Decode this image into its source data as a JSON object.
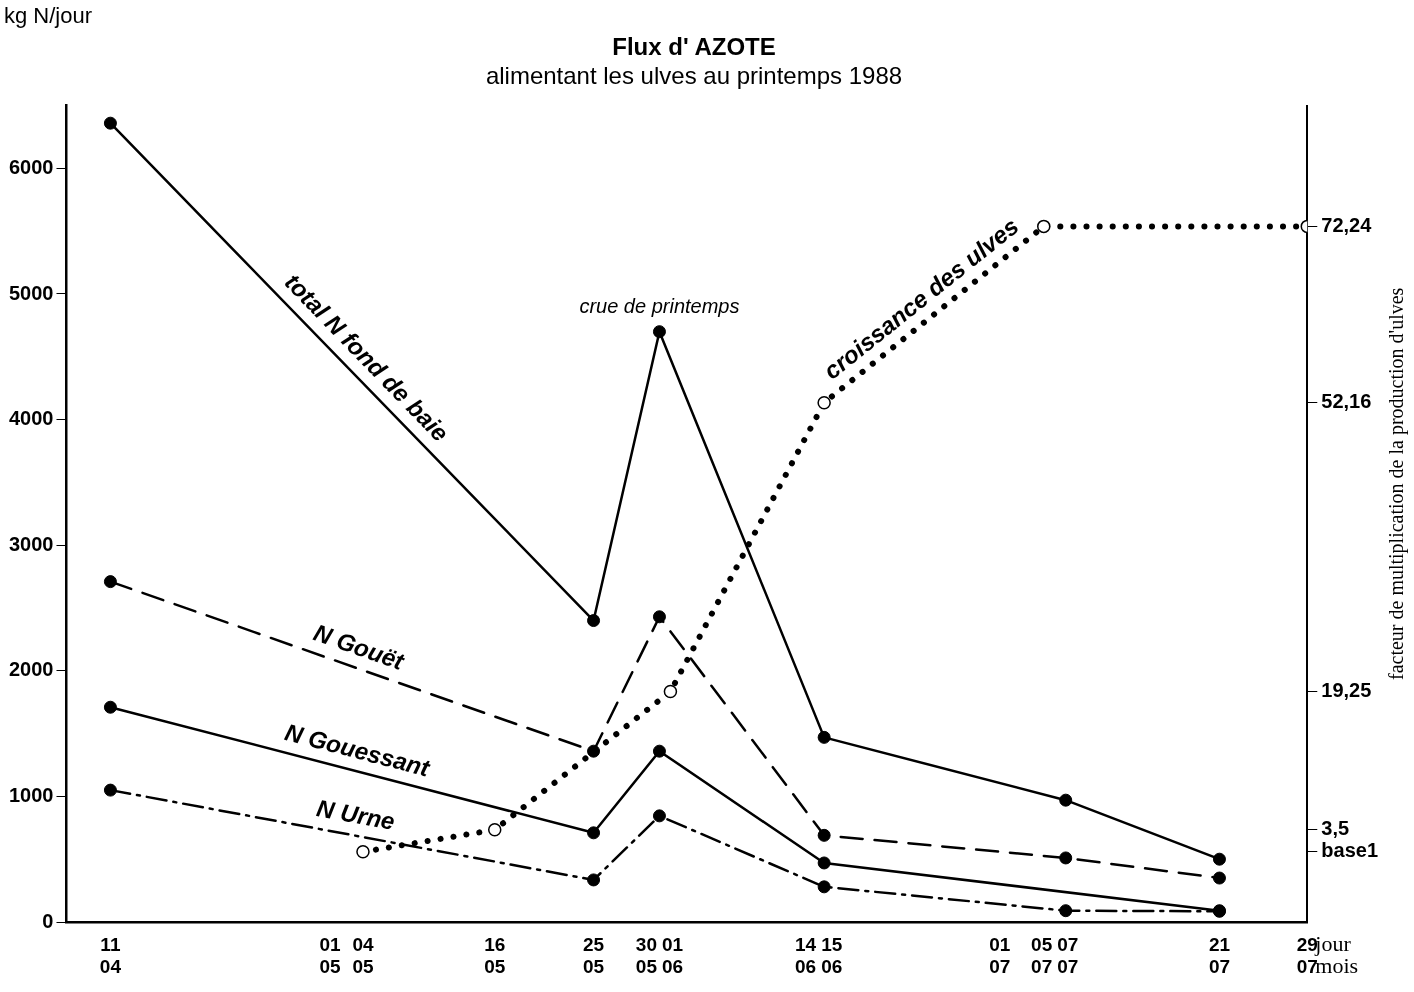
{
  "chart_data": {
    "type": "line",
    "title": "Flux d' AZOTE",
    "subtitle": "alimentant les ulves au printemps 1988",
    "xlabel": "jour mois",
    "ylabel": "kg N/jour",
    "y2label": "facteur de multiplication de la production d'ulves",
    "xlim": [
      "--04-07",
      "--07-29"
    ],
    "xticks": [
      {
        "value": "--04-11",
        "label": "11\n04"
      },
      {
        "value": "--05-01",
        "label": "01\n05"
      },
      {
        "value": "--05-04",
        "label": "04\n05"
      },
      {
        "value": "--05-16",
        "label": "16\n05"
      },
      {
        "value": "--05-25",
        "label": "25\n05"
      },
      {
        "value": "--05-30",
        "label": "30\n05"
      },
      {
        "value": "--06-01",
        "label": "01\n06"
      },
      {
        "value": "--06-14",
        "label": "14\n06"
      },
      {
        "value": "--06-15",
        "label": "15\n06"
      },
      {
        "value": "--07-01",
        "label": "01\n07"
      },
      {
        "value": "--07-05",
        "label": "05\n07"
      },
      {
        "value": "--07-07",
        "label": "07\n07"
      },
      {
        "value": "--07-21",
        "label": "21\n07"
      },
      {
        "value": "--07-29",
        "label": "29\n07"
      }
    ],
    "ylim": [
      0,
      6500
    ],
    "yticks": [
      0,
      1000,
      2000,
      3000,
      4000,
      5000,
      6000
    ],
    "y2lim": [
      -7,
      86
    ],
    "y2ticks": [
      {
        "value": 1,
        "label": "base1"
      },
      {
        "value": 3.5,
        "label": "3,5"
      },
      {
        "value": 19.25,
        "label": "19,25"
      },
      {
        "value": 52.16,
        "label": "52,16"
      },
      {
        "value": 72.24,
        "label": "72,24"
      }
    ],
    "series": [
      {
        "name": "total N fond de baie",
        "color": "#000000",
        "x": [
          "--04-11",
          "--05-25",
          "--05-31",
          "--06-15",
          "--07-07",
          "--07-21"
        ],
        "values": [
          6360,
          2400,
          4700,
          1470,
          970,
          500
        ],
        "line_style": "solid"
      },
      {
        "name": "N Gouët",
        "color": "#000000",
        "x": [
          "--04-11",
          "--05-25",
          "--05-31",
          "--06-15",
          "--07-07",
          "--07-21"
        ],
        "values": [
          2710,
          1360,
          2430,
          690,
          510,
          350
        ],
        "line_style": "dashed"
      },
      {
        "name": "N Gouessant",
        "color": "#000000",
        "x": [
          "--04-11",
          "--05-25",
          "--05-31",
          "--06-15",
          "--07-21"
        ],
        "values": [
          1710,
          710,
          1360,
          470,
          90
        ],
        "line_style": "solid"
      },
      {
        "name": "N Urne",
        "color": "#000000",
        "x": [
          "--04-11",
          "--05-25",
          "--05-31",
          "--06-15",
          "--07-07",
          "--07-21"
        ],
        "values": [
          1050,
          335,
          845,
          280,
          90,
          85
        ],
        "line_style": "dashdot"
      },
      {
        "name": "croissance des ulves",
        "color": "#000000",
        "axis": "y2",
        "x": [
          "--05-04",
          "--05-16",
          "--06-01",
          "--06-15",
          "--07-05",
          "--07-29"
        ],
        "values": [
          1,
          3.5,
          19.25,
          52.16,
          72.24,
          72.24
        ],
        "line_style": "dotted"
      }
    ],
    "annotations": [
      {
        "text": "crue de printemps",
        "x": "--05-31",
        "y": 4700
      }
    ],
    "marker": "circle",
    "grid": false,
    "legend": false
  }
}
